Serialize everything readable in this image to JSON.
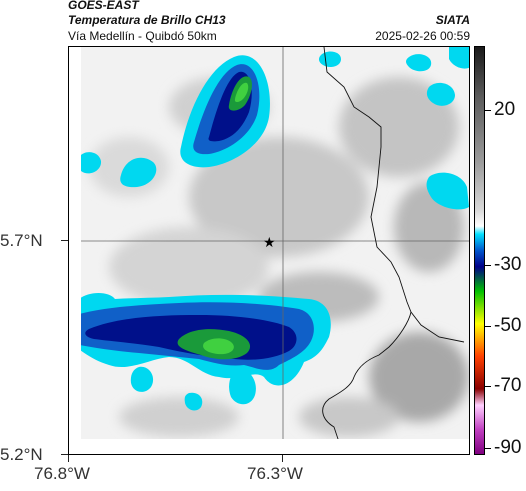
{
  "header": {
    "title": "GOES-EAST",
    "subtitle": "Temperatura de Brillo CH13",
    "route": "Vía Medellín - Quibdó 50km",
    "org": "SIATA",
    "datetime": "2025-02-26 00:59"
  },
  "map": {
    "lat_labels": [
      "5.7°N",
      "5.2°N"
    ],
    "lon_labels": [
      "76.8°W",
      "76.3°W"
    ],
    "marker": "star-icon"
  },
  "colorbar": {
    "labels": [
      "20",
      "-30",
      "-50",
      "-70",
      "-90"
    ],
    "colors": [
      "#1a1a1a",
      "#5a5a5a",
      "#9a9a9a",
      "#d8d8d8",
      "#ffffff",
      "#00e0ff",
      "#0055cc",
      "#000088",
      "#00c000",
      "#ffff00",
      "#ff4000",
      "#880000",
      "#ffd0ff",
      "#c040c0",
      "#800080"
    ]
  }
}
